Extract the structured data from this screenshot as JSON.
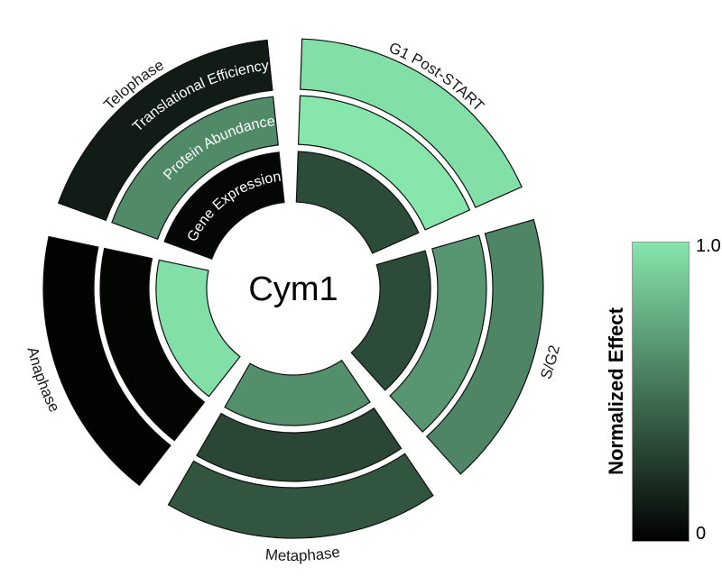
{
  "chart_data": {
    "type": "heatmap",
    "subtype": "nested_polar_donut",
    "title": "",
    "center_label": "Cym1",
    "ring_order": "inner_to_outer",
    "rings": [
      "Gene Expression",
      "Protein Abundance",
      "Translational Efficiency"
    ],
    "sectors": [
      "G1 Post-START",
      "S/G2",
      "Metaphase",
      "Anaphase",
      "Telophase"
    ],
    "series": [
      {
        "name": "G1 Post-START",
        "values": [
          0.33,
          1.0,
          0.97
        ]
      },
      {
        "name": "S/G2",
        "values": [
          0.33,
          0.65,
          0.58
        ]
      },
      {
        "name": "Metaphase",
        "values": [
          0.62,
          0.31,
          0.37
        ]
      },
      {
        "name": "Anaphase",
        "values": [
          0.97,
          0.02,
          0.01
        ]
      },
      {
        "name": "Telophase",
        "values": [
          0.03,
          0.6,
          0.12
        ]
      }
    ],
    "value_scale": {
      "min": 0,
      "max": 1
    },
    "colorbar": {
      "title": "Normalized Effect",
      "max_label": "1.0",
      "min_label": "0",
      "max_color": "#86e6ac",
      "min_color": "#000000",
      "position": "right"
    },
    "layout": {
      "grid": false,
      "background": "#ffffff",
      "legend_position": "right-colorbar"
    }
  }
}
